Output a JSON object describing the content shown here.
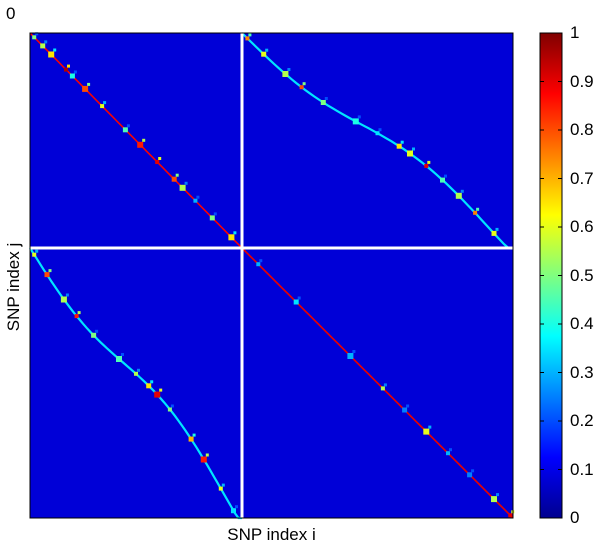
{
  "chart_data": {
    "type": "heatmap",
    "title": "",
    "xlabel": "SNP index i",
    "ylabel": "SNP index j",
    "corner_label": "0",
    "colorbar": {
      "colormap": "jet",
      "range": [
        0,
        1
      ],
      "ticks": [
        "0",
        "0.1",
        "0.2",
        "0.3",
        "0.4",
        "0.5",
        "0.6",
        "0.7",
        "0.8",
        "0.9",
        "1"
      ]
    },
    "background_value": 0.08,
    "panels": [
      {
        "id": "top-left",
        "description": "within-block LD, diagonal",
        "diagonal_value": 0.88,
        "hotspots": [
          {
            "t": 0.02,
            "v": 0.5
          },
          {
            "t": 0.06,
            "v": 0.55
          },
          {
            "t": 0.1,
            "v": 0.65
          },
          {
            "t": 0.17,
            "v": 0.95
          },
          {
            "t": 0.2,
            "v": 0.4
          },
          {
            "t": 0.26,
            "v": 0.8
          },
          {
            "t": 0.34,
            "v": 0.6
          },
          {
            "t": 0.45,
            "v": 0.45
          },
          {
            "t": 0.52,
            "v": 0.85
          },
          {
            "t": 0.6,
            "v": 0.9
          },
          {
            "t": 0.68,
            "v": 0.8
          },
          {
            "t": 0.72,
            "v": 0.55
          },
          {
            "t": 0.78,
            "v": 0.3
          },
          {
            "t": 0.86,
            "v": 0.5
          },
          {
            "t": 0.95,
            "v": 0.65
          }
        ]
      },
      {
        "id": "top-right",
        "description": "cross-block LD, wavy diagonal",
        "diagonal_value": 0.35,
        "hotspots": [
          {
            "t": 0.02,
            "v": 0.75
          },
          {
            "t": 0.08,
            "v": 0.6
          },
          {
            "t": 0.16,
            "v": 0.55
          },
          {
            "t": 0.22,
            "v": 0.8
          },
          {
            "t": 0.3,
            "v": 0.5
          },
          {
            "t": 0.42,
            "v": 0.4
          },
          {
            "t": 0.5,
            "v": 0.35
          },
          {
            "t": 0.58,
            "v": 0.65
          },
          {
            "t": 0.62,
            "v": 0.6
          },
          {
            "t": 0.68,
            "v": 0.9
          },
          {
            "t": 0.74,
            "v": 0.45
          },
          {
            "t": 0.8,
            "v": 0.55
          },
          {
            "t": 0.86,
            "v": 0.75
          },
          {
            "t": 0.93,
            "v": 0.6
          }
        ]
      },
      {
        "id": "bottom-left",
        "description": "cross-block LD, wavy diagonal",
        "diagonal_value": 0.35,
        "hotspots": [
          {
            "t": 0.02,
            "v": 0.6
          },
          {
            "t": 0.08,
            "v": 0.8
          },
          {
            "t": 0.16,
            "v": 0.55
          },
          {
            "t": 0.22,
            "v": 0.85
          },
          {
            "t": 0.3,
            "v": 0.5
          },
          {
            "t": 0.42,
            "v": 0.45
          },
          {
            "t": 0.5,
            "v": 0.55
          },
          {
            "t": 0.56,
            "v": 0.65
          },
          {
            "t": 0.6,
            "v": 0.9
          },
          {
            "t": 0.66,
            "v": 0.5
          },
          {
            "t": 0.76,
            "v": 0.7
          },
          {
            "t": 0.82,
            "v": 0.85
          },
          {
            "t": 0.9,
            "v": 0.6
          },
          {
            "t": 0.96,
            "v": 0.35
          }
        ]
      },
      {
        "id": "bottom-right",
        "description": "within-block LD, diagonal",
        "diagonal_value": 0.9,
        "hotspots": [
          {
            "t": 0.06,
            "v": 0.3
          },
          {
            "t": 0.2,
            "v": 0.35
          },
          {
            "t": 0.4,
            "v": 0.3
          },
          {
            "t": 0.52,
            "v": 0.55
          },
          {
            "t": 0.6,
            "v": 0.25
          },
          {
            "t": 0.68,
            "v": 0.6
          },
          {
            "t": 0.76,
            "v": 0.3
          },
          {
            "t": 0.84,
            "v": 0.25
          },
          {
            "t": 0.93,
            "v": 0.55
          },
          {
            "t": 0.99,
            "v": 0.9
          }
        ]
      }
    ]
  }
}
